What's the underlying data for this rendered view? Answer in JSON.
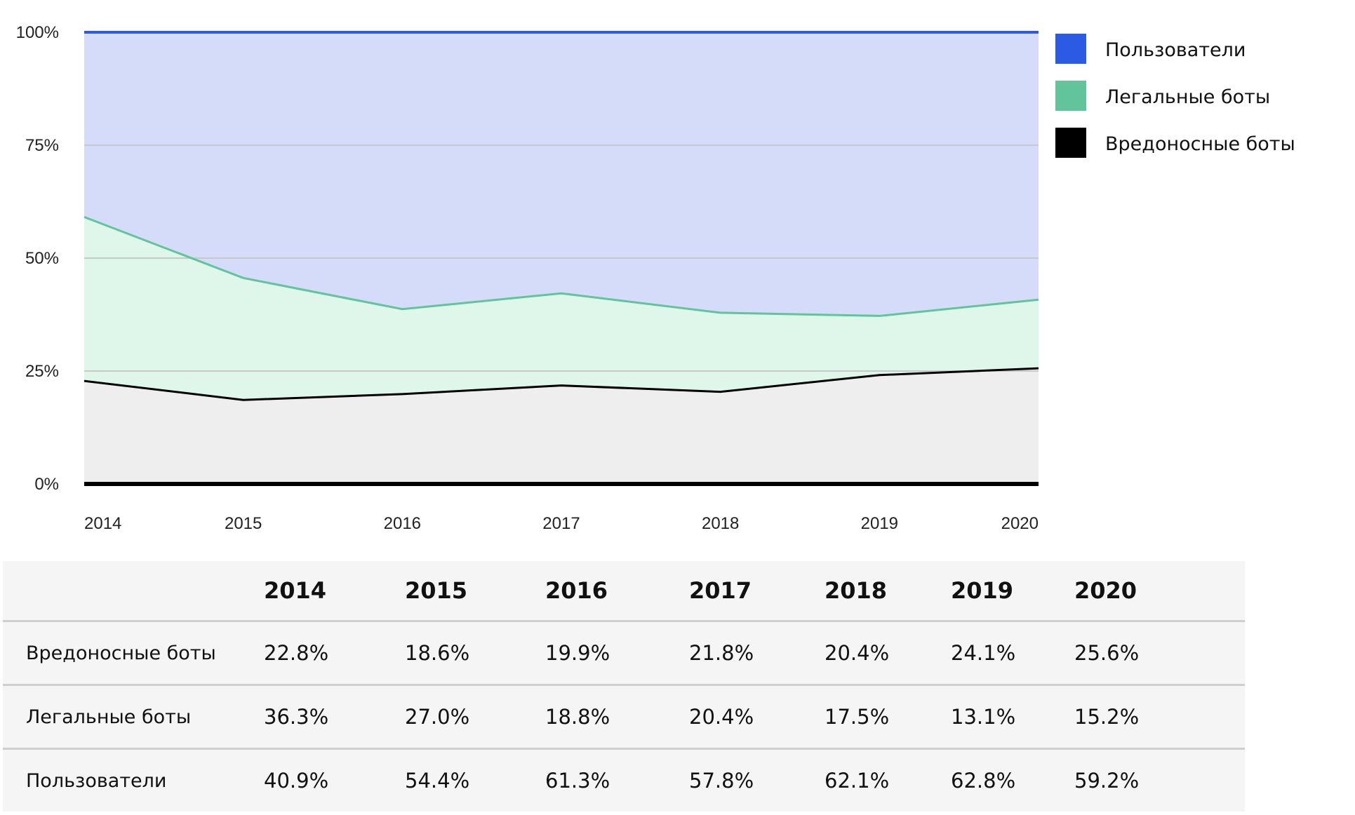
{
  "chart_data": {
    "type": "area",
    "stacked": true,
    "normalized": true,
    "x": [
      "2014",
      "2015",
      "2016",
      "2017",
      "2018",
      "2019",
      "2020"
    ],
    "y_ticks": [
      "0%",
      "25%",
      "50%",
      "75%",
      "100%"
    ],
    "ylim": [
      0,
      100
    ],
    "grid": true,
    "legend_position": "right",
    "series": [
      {
        "name": "Вредоносные боты",
        "color": "#000000",
        "fill": "#eeeeee",
        "values": [
          22.8,
          18.6,
          19.9,
          21.8,
          20.4,
          24.1,
          25.6
        ]
      },
      {
        "name": "Легальные боты",
        "color": "#61c49a",
        "fill": "#dff6ea",
        "values": [
          36.3,
          27.0,
          18.8,
          20.4,
          17.5,
          13.1,
          15.2
        ]
      },
      {
        "name": "Пользователи",
        "color": "#2b5be3",
        "fill": "#d5dcf9",
        "values": [
          40.9,
          54.4,
          61.3,
          57.8,
          62.1,
          62.8,
          59.2
        ]
      }
    ],
    "legend": [
      "Пользователи",
      "Легальные боты",
      "Вредоносные боты"
    ]
  },
  "table": {
    "headers": [
      "",
      "2014",
      "2015",
      "2016",
      "2017",
      "2018",
      "2019",
      "2020"
    ],
    "rows": [
      {
        "label": "Вредоносные боты",
        "cells": [
          "22.8%",
          "18.6%",
          "19.9%",
          "21.8%",
          "20.4%",
          "24.1%",
          "25.6%"
        ]
      },
      {
        "label": "Легальные боты",
        "cells": [
          "36.3%",
          "27.0%",
          "18.8%",
          "20.4%",
          "17.5%",
          "13.1%",
          "15.2%"
        ]
      },
      {
        "label": "Пользователи",
        "cells": [
          "40.9%",
          "54.4%",
          "61.3%",
          "57.8%",
          "62.1%",
          "62.8%",
          "59.2%"
        ]
      }
    ]
  }
}
